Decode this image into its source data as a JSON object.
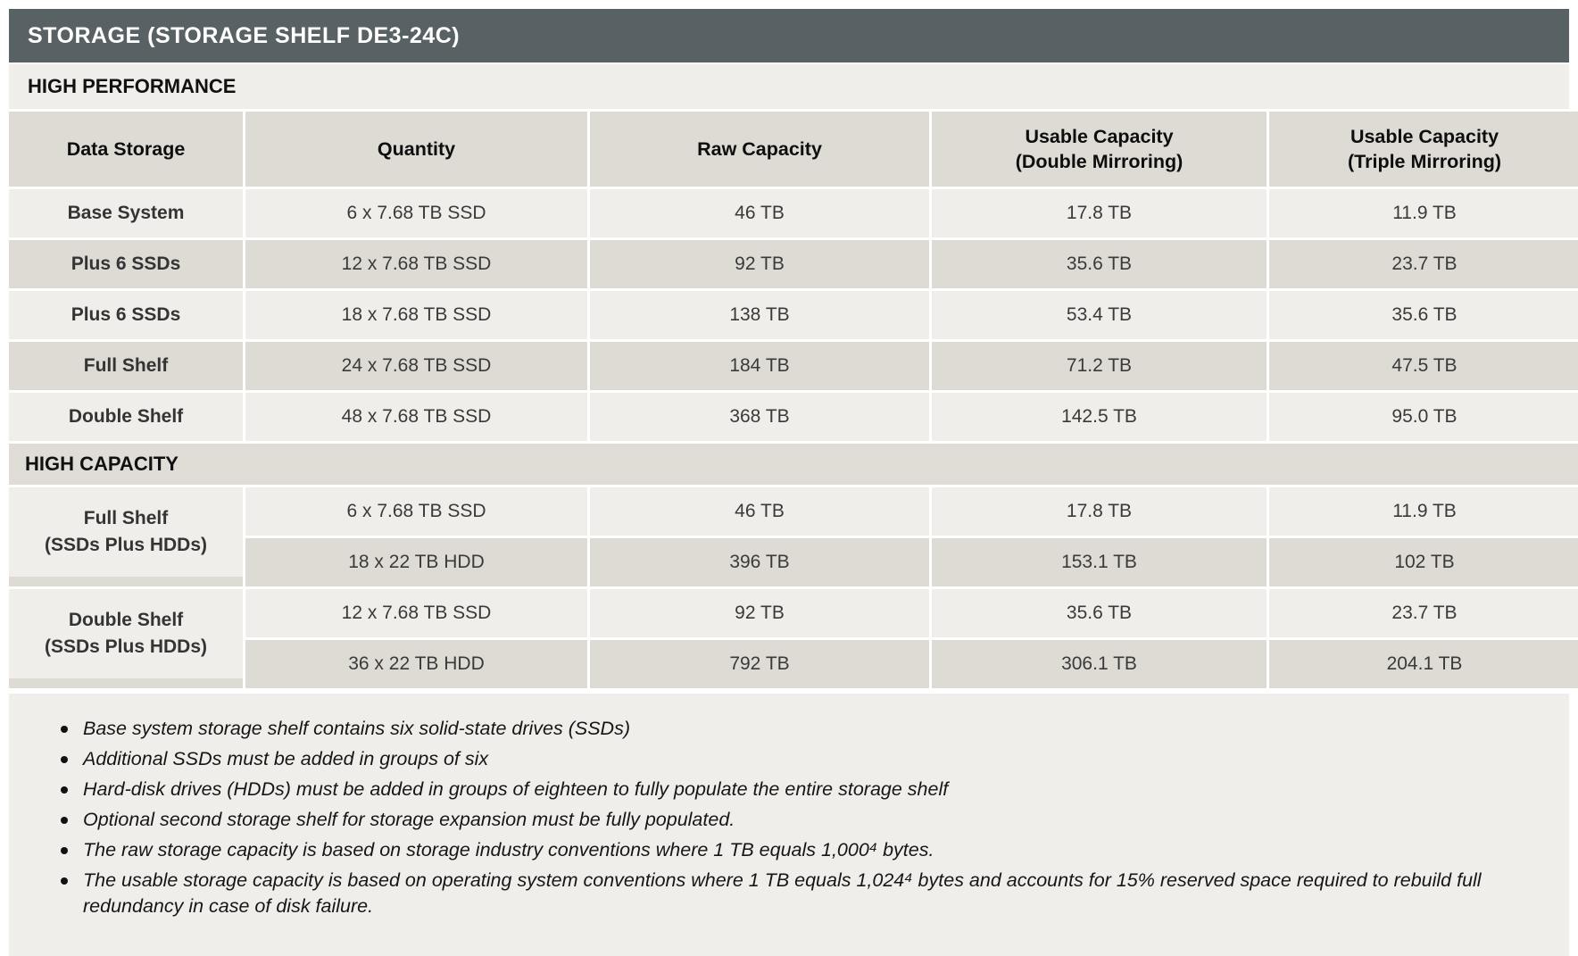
{
  "title": "STORAGE (STORAGE SHELF DE3-24C)",
  "colors": {
    "title_bar": "#586264",
    "light_row": "#efeeeb",
    "beige_row": "#dedbd4",
    "capacity_band": "#e0ddd7",
    "title_text": "#ffffff"
  },
  "table": {
    "columns": [
      "Data Storage",
      "Quantity",
      "Raw Capacity",
      "Usable Capacity\n(Double Mirroring)",
      "Usable Capacity\n(Triple Mirroring)"
    ],
    "high_performance": {
      "label": "HIGH PERFORMANCE",
      "rows": [
        {
          "name": "Base System",
          "quantity": "6 x 7.68 TB SSD",
          "raw": "46 TB",
          "double_mirroring": "17.8 TB",
          "triple_mirroring": "11.9 TB"
        },
        {
          "name": "Plus 6 SSDs",
          "quantity": "12 x 7.68 TB SSD",
          "raw": "92 TB",
          "double_mirroring": "35.6 TB",
          "triple_mirroring": "23.7 TB"
        },
        {
          "name": "Plus 6 SSDs",
          "quantity": "18 x 7.68 TB SSD",
          "raw": "138 TB",
          "double_mirroring": "53.4 TB",
          "triple_mirroring": "35.6 TB"
        },
        {
          "name": "Full Shelf",
          "quantity": "24 x 7.68 TB SSD",
          "raw": "184 TB",
          "double_mirroring": "71.2 TB",
          "triple_mirroring": "47.5 TB"
        },
        {
          "name": "Double Shelf",
          "quantity": "48 x 7.68 TB SSD",
          "raw": "368 TB",
          "double_mirroring": "142.5 TB",
          "triple_mirroring": "95.0 TB"
        }
      ]
    },
    "high_capacity": {
      "label": "HIGH CAPACITY",
      "groups": [
        {
          "name": "Full Shelf\n(SSDs Plus HDDs)",
          "rows": [
            {
              "quantity": "6 x 7.68 TB SSD",
              "raw": "46 TB",
              "double_mirroring": "17.8 TB",
              "triple_mirroring": "11.9 TB"
            },
            {
              "quantity": "18 x 22 TB HDD",
              "raw": "396 TB",
              "double_mirroring": "153.1 TB",
              "triple_mirroring": "102 TB"
            }
          ]
        },
        {
          "name": "Double Shelf\n(SSDs Plus HDDs)",
          "rows": [
            {
              "quantity": "12 x 7.68 TB SSD",
              "raw": "92 TB",
              "double_mirroring": "35.6 TB",
              "triple_mirroring": "23.7 TB"
            },
            {
              "quantity": "36 x 22 TB HDD",
              "raw": "792 TB",
              "double_mirroring": "306.1 TB",
              "triple_mirroring": "204.1 TB"
            }
          ]
        }
      ]
    }
  },
  "notes": [
    "Base system storage shelf contains six solid-state drives (SSDs)",
    "Additional SSDs must be added in groups of six",
    "Hard-disk drives (HDDs) must be added in groups of eighteen to fully populate the entire storage shelf",
    "Optional second storage shelf for storage expansion must be fully populated.",
    "The raw storage capacity is based on storage industry conventions where 1 TB equals 1,000⁴ bytes.",
    "The usable storage capacity is based on operating system conventions where 1 TB equals 1,024⁴ bytes and accounts for 15% reserved space required to rebuild full redundancy in case of disk failure."
  ]
}
